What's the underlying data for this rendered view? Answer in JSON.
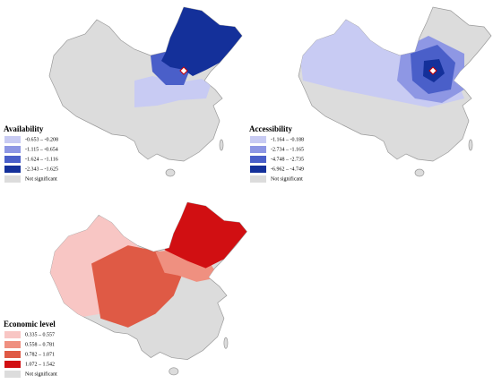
{
  "panels": [
    {
      "title": "Availability",
      "legend": [
        {
          "label": "-0.653 – -0.208",
          "color": "#c8cbf3"
        },
        {
          "label": "-1.115 – -0.654",
          "color": "#8e97e4"
        },
        {
          "label": "-1.624 – -1.116",
          "color": "#4a5fc9"
        },
        {
          "label": "-2.343 – -1.625",
          "color": "#14309a"
        },
        {
          "label": "Not significant",
          "color": "#dcdcdc"
        }
      ]
    },
    {
      "title": "Accessibility",
      "legend": [
        {
          "label": "-1.164 – -0.188",
          "color": "#c8cbf3"
        },
        {
          "label": "-2.734 – -1.165",
          "color": "#8e97e4"
        },
        {
          "label": "-4.748 – -2.735",
          "color": "#4a5fc9"
        },
        {
          "label": "-6.962 – -4.749",
          "color": "#14309a"
        },
        {
          "label": "Not significant",
          "color": "#dcdcdc"
        }
      ]
    },
    {
      "title": "Economic level",
      "legend": [
        {
          "label": "0.335 – 0.557",
          "color": "#f8c6c4"
        },
        {
          "label": "0.558 – 0.781",
          "color": "#ef9080"
        },
        {
          "label": "0.782 – 1.071",
          "color": "#df5a45"
        },
        {
          "label": "1.072 – 1.542",
          "color": "#d10f12"
        },
        {
          "label": "Not significant",
          "color": "#dcdcdc"
        }
      ]
    }
  ]
}
